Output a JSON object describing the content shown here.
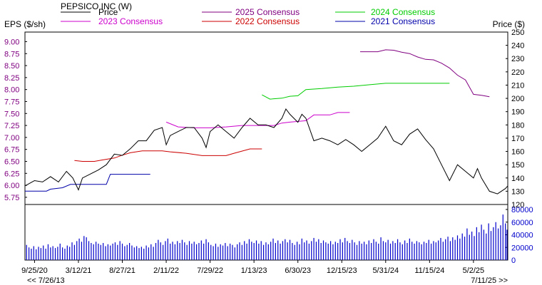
{
  "chart_data": {
    "type": "line",
    "title": "PEPSICO INC (W)",
    "eps_axis_label": "EPS ($/sh)",
    "price_axis_label": "Price ($)",
    "eps_ylim": [
      5.6,
      9.2
    ],
    "eps_ticks": [
      "9.00",
      "8.75",
      "8.50",
      "8.25",
      "8.00",
      "7.75",
      "7.50",
      "7.25",
      "7.00",
      "6.75",
      "6.50",
      "6.25",
      "6.00",
      "5.75"
    ],
    "price_ylim": [
      120,
      250
    ],
    "price_ticks": [
      "250",
      "240",
      "230",
      "220",
      "210",
      "200",
      "190",
      "180",
      "170",
      "160",
      "150",
      "140",
      "130",
      "120"
    ],
    "volume_ylim": [
      0,
      80000
    ],
    "volume_ticks": [
      "80000",
      "60000",
      "40000",
      "20000",
      "0"
    ],
    "x_ticks": [
      {
        "t": 0.0,
        "label": "9/25/20"
      },
      {
        "t": 5.5,
        "label": "3/12/21"
      },
      {
        "t": 11.0,
        "label": "8/27/21"
      },
      {
        "t": 16.5,
        "label": "2/11/22"
      },
      {
        "t": 22.0,
        "label": "7/29/22"
      },
      {
        "t": 27.5,
        "label": "1/13/23"
      },
      {
        "t": 33.0,
        "label": "6/30/23"
      },
      {
        "t": 38.5,
        "label": "12/15/23"
      },
      {
        "t": 44.0,
        "label": "5/31/24"
      },
      {
        "t": 49.5,
        "label": "11/15/24"
      },
      {
        "t": 55.0,
        "label": "5/2/25"
      }
    ],
    "t_range": [
      -1.2,
      59.3
    ],
    "t_unit": "months since 9/25/20",
    "range_start_label": "<< 7/26/13",
    "range_end_label": "7/11/25 >>",
    "legend": [
      {
        "name": "Price",
        "color": "#000000"
      },
      {
        "name": "2023 Consensus",
        "color": "#cc00cc"
      },
      {
        "name": "2025 Consensus",
        "color": "#800080"
      },
      {
        "name": "2022 Consensus",
        "color": "#cc0000"
      },
      {
        "name": "2024 Consensus",
        "color": "#00cc00"
      },
      {
        "name": "2021 Consensus",
        "color": "#0000aa"
      }
    ],
    "price_series": {
      "name": "Price",
      "color": "#000000",
      "points": [
        [
          -1.2,
          134
        ],
        [
          0,
          138
        ],
        [
          1,
          137
        ],
        [
          2,
          141
        ],
        [
          3,
          137
        ],
        [
          4,
          145
        ],
        [
          4.8,
          140
        ],
        [
          5.5,
          131
        ],
        [
          6,
          140
        ],
        [
          7,
          143
        ],
        [
          8,
          146
        ],
        [
          9,
          150
        ],
        [
          10,
          158
        ],
        [
          11,
          157
        ],
        [
          12,
          162
        ],
        [
          13,
          168
        ],
        [
          14,
          168
        ],
        [
          15,
          176
        ],
        [
          16,
          178
        ],
        [
          16.5,
          165
        ],
        [
          17,
          172
        ],
        [
          18,
          175
        ],
        [
          19,
          178
        ],
        [
          20,
          178
        ],
        [
          21,
          170
        ],
        [
          21.5,
          163
        ],
        [
          22,
          175
        ],
        [
          23,
          180
        ],
        [
          24,
          175
        ],
        [
          25,
          170
        ],
        [
          26,
          178
        ],
        [
          27,
          185
        ],
        [
          28,
          180
        ],
        [
          29,
          180
        ],
        [
          30,
          178
        ],
        [
          31,
          185
        ],
        [
          31.5,
          192
        ],
        [
          32,
          188
        ],
        [
          33,
          182
        ],
        [
          33.5,
          188
        ],
        [
          34,
          185
        ],
        [
          35,
          168
        ],
        [
          36,
          170
        ],
        [
          37,
          168
        ],
        [
          38,
          165
        ],
        [
          39,
          169
        ],
        [
          40,
          165
        ],
        [
          41,
          160
        ],
        [
          42,
          165
        ],
        [
          43,
          170
        ],
        [
          44,
          179
        ],
        [
          45,
          168
        ],
        [
          46,
          165
        ],
        [
          47,
          173
        ],
        [
          48,
          177
        ],
        [
          49,
          169
        ],
        [
          50,
          162
        ],
        [
          51,
          150
        ],
        [
          52,
          138
        ],
        [
          53,
          150
        ],
        [
          54,
          145
        ],
        [
          55,
          140
        ],
        [
          55.5,
          147
        ],
        [
          56,
          140
        ],
        [
          57,
          130
        ],
        [
          58,
          128
        ],
        [
          59,
          132
        ],
        [
          59.3,
          134
        ]
      ]
    },
    "consensus_series": [
      {
        "name": "2021 Consensus",
        "color": "#0000aa",
        "points": [
          [
            -1.2,
            5.88
          ],
          [
            1.5,
            5.88
          ],
          [
            2,
            5.92
          ],
          [
            3.5,
            5.95
          ],
          [
            4.5,
            6.02
          ],
          [
            9,
            6.02
          ],
          [
            9.5,
            6.23
          ],
          [
            14.5,
            6.23
          ]
        ]
      },
      {
        "name": "2022 Consensus",
        "color": "#cc0000",
        "points": [
          [
            5,
            6.52
          ],
          [
            6,
            6.5
          ],
          [
            7.5,
            6.5
          ],
          [
            8.5,
            6.53
          ],
          [
            10,
            6.57
          ],
          [
            11,
            6.63
          ],
          [
            12,
            6.68
          ],
          [
            13.5,
            6.72
          ],
          [
            16,
            6.72
          ],
          [
            17,
            6.7
          ],
          [
            19,
            6.67
          ],
          [
            21,
            6.62
          ],
          [
            24,
            6.62
          ],
          [
            25,
            6.67
          ],
          [
            27,
            6.76
          ],
          [
            28.5,
            6.76
          ]
        ]
      },
      {
        "name": "2023 Consensus",
        "color": "#cc00cc",
        "points": [
          [
            16.5,
            7.32
          ],
          [
            18,
            7.22
          ],
          [
            20,
            7.2
          ],
          [
            22,
            7.2
          ],
          [
            24,
            7.22
          ],
          [
            26,
            7.25
          ],
          [
            28,
            7.25
          ],
          [
            30,
            7.25
          ],
          [
            31,
            7.3
          ],
          [
            32,
            7.32
          ],
          [
            34,
            7.35
          ],
          [
            35,
            7.47
          ],
          [
            37,
            7.47
          ],
          [
            38,
            7.52
          ],
          [
            39.5,
            7.52
          ]
        ]
      },
      {
        "name": "2024 Consensus",
        "color": "#00cc00",
        "points": [
          [
            28.5,
            7.89
          ],
          [
            29.5,
            7.8
          ],
          [
            31,
            7.82
          ],
          [
            32,
            7.86
          ],
          [
            33,
            7.87
          ],
          [
            34,
            8.0
          ],
          [
            36,
            8.02
          ],
          [
            38,
            8.05
          ],
          [
            40,
            8.07
          ],
          [
            42,
            8.1
          ],
          [
            44,
            8.13
          ],
          [
            46,
            8.13
          ],
          [
            48,
            8.13
          ],
          [
            50,
            8.13
          ],
          [
            52,
            8.13
          ]
        ]
      },
      {
        "name": "2025 Consensus",
        "color": "#800080",
        "points": [
          [
            40.8,
            8.79
          ],
          [
            43,
            8.79
          ],
          [
            44,
            8.83
          ],
          [
            45,
            8.82
          ],
          [
            46,
            8.78
          ],
          [
            47,
            8.75
          ],
          [
            48,
            8.68
          ],
          [
            49,
            8.63
          ],
          [
            50,
            8.62
          ],
          [
            51,
            8.55
          ],
          [
            52,
            8.45
          ],
          [
            53,
            8.3
          ],
          [
            54,
            8.2
          ],
          [
            55,
            7.9
          ],
          [
            56,
            7.88
          ],
          [
            57,
            7.85
          ]
        ]
      }
    ],
    "volume_bars": [
      [
        -1.0,
        24000
      ],
      [
        -0.7,
        20000
      ],
      [
        -0.4,
        18000
      ],
      [
        -0.1,
        22000
      ],
      [
        0.2,
        17000
      ],
      [
        0.5,
        21000
      ],
      [
        0.8,
        19000
      ],
      [
        1.1,
        23000
      ],
      [
        1.4,
        18000
      ],
      [
        1.7,
        25000
      ],
      [
        2.0,
        20000
      ],
      [
        2.3,
        22000
      ],
      [
        2.6,
        19000
      ],
      [
        2.9,
        21000
      ],
      [
        3.2,
        26000
      ],
      [
        3.5,
        20000
      ],
      [
        3.8,
        18000
      ],
      [
        4.1,
        23000
      ],
      [
        4.4,
        21000
      ],
      [
        4.7,
        28000
      ],
      [
        5.0,
        24000
      ],
      [
        5.3,
        30000
      ],
      [
        5.6,
        34000
      ],
      [
        5.9,
        29000
      ],
      [
        6.2,
        38000
      ],
      [
        6.5,
        36000
      ],
      [
        6.8,
        30000
      ],
      [
        7.1,
        27000
      ],
      [
        7.4,
        25000
      ],
      [
        7.7,
        29000
      ],
      [
        8.0,
        26000
      ],
      [
        8.3,
        24000
      ],
      [
        8.6,
        27000
      ],
      [
        8.9,
        22000
      ],
      [
        9.2,
        25000
      ],
      [
        9.5,
        23000
      ],
      [
        9.8,
        26000
      ],
      [
        10.1,
        28000
      ],
      [
        10.4,
        24000
      ],
      [
        10.7,
        30000
      ],
      [
        11.0,
        26000
      ],
      [
        11.3,
        22000
      ],
      [
        11.6,
        24000
      ],
      [
        11.9,
        27000
      ],
      [
        12.2,
        23000
      ],
      [
        12.5,
        20000
      ],
      [
        12.8,
        22000
      ],
      [
        13.1,
        19000
      ],
      [
        13.4,
        21000
      ],
      [
        13.7,
        18000
      ],
      [
        14.0,
        23000
      ],
      [
        14.3,
        20000
      ],
      [
        14.6,
        25000
      ],
      [
        14.9,
        21000
      ],
      [
        15.2,
        27000
      ],
      [
        15.5,
        32000
      ],
      [
        15.8,
        28000
      ],
      [
        16.1,
        24000
      ],
      [
        16.4,
        30000
      ],
      [
        16.7,
        34000
      ],
      [
        17.0,
        26000
      ],
      [
        17.3,
        29000
      ],
      [
        17.6,
        25000
      ],
      [
        17.9,
        30000
      ],
      [
        18.2,
        27000
      ],
      [
        18.5,
        32000
      ],
      [
        18.8,
        28000
      ],
      [
        19.1,
        24000
      ],
      [
        19.4,
        30000
      ],
      [
        19.7,
        26000
      ],
      [
        20.0,
        29000
      ],
      [
        20.3,
        25000
      ],
      [
        20.6,
        27000
      ],
      [
        20.9,
        31000
      ],
      [
        21.2,
        26000
      ],
      [
        21.5,
        33000
      ],
      [
        21.8,
        28000
      ],
      [
        22.1,
        24000
      ],
      [
        22.4,
        22000
      ],
      [
        22.7,
        26000
      ],
      [
        23.0,
        21000
      ],
      [
        23.3,
        25000
      ],
      [
        23.6,
        23000
      ],
      [
        23.9,
        27000
      ],
      [
        24.2,
        22000
      ],
      [
        24.5,
        26000
      ],
      [
        24.8,
        24000
      ],
      [
        25.1,
        20000
      ],
      [
        25.4,
        25000
      ],
      [
        25.7,
        28000
      ],
      [
        26.0,
        24000
      ],
      [
        26.3,
        30000
      ],
      [
        26.6,
        26000
      ],
      [
        26.9,
        33000
      ],
      [
        27.2,
        29000
      ],
      [
        27.5,
        27000
      ],
      [
        27.8,
        31000
      ],
      [
        28.1,
        26000
      ],
      [
        28.4,
        30000
      ],
      [
        28.7,
        24000
      ],
      [
        29.0,
        28000
      ],
      [
        29.3,
        25000
      ],
      [
        29.6,
        29000
      ],
      [
        29.9,
        34000
      ],
      [
        30.2,
        27000
      ],
      [
        30.5,
        31000
      ],
      [
        30.8,
        26000
      ],
      [
        31.1,
        30000
      ],
      [
        31.4,
        33000
      ],
      [
        31.7,
        28000
      ],
      [
        32.0,
        32000
      ],
      [
        32.3,
        27000
      ],
      [
        32.6,
        24000
      ],
      [
        32.9,
        29000
      ],
      [
        33.2,
        25000
      ],
      [
        33.5,
        34000
      ],
      [
        33.8,
        28000
      ],
      [
        34.1,
        31000
      ],
      [
        34.4,
        26000
      ],
      [
        34.7,
        30000
      ],
      [
        35.0,
        35000
      ],
      [
        35.3,
        29000
      ],
      [
        35.6,
        33000
      ],
      [
        35.9,
        27000
      ],
      [
        36.2,
        31000
      ],
      [
        36.5,
        28000
      ],
      [
        36.8,
        26000
      ],
      [
        37.1,
        30000
      ],
      [
        37.4,
        25000
      ],
      [
        37.7,
        29000
      ],
      [
        38.0,
        27000
      ],
      [
        38.3,
        33000
      ],
      [
        38.6,
        28000
      ],
      [
        38.9,
        35000
      ],
      [
        39.2,
        30000
      ],
      [
        39.5,
        27000
      ],
      [
        39.8,
        32000
      ],
      [
        40.1,
        28000
      ],
      [
        40.4,
        24000
      ],
      [
        40.7,
        30000
      ],
      [
        41.0,
        26000
      ],
      [
        41.3,
        29000
      ],
      [
        41.6,
        25000
      ],
      [
        41.9,
        31000
      ],
      [
        42.2,
        27000
      ],
      [
        42.5,
        33000
      ],
      [
        42.8,
        29000
      ],
      [
        43.1,
        26000
      ],
      [
        43.4,
        36000
      ],
      [
        43.7,
        30000
      ],
      [
        44.0,
        28000
      ],
      [
        44.3,
        32000
      ],
      [
        44.6,
        26000
      ],
      [
        44.9,
        30000
      ],
      [
        45.2,
        27000
      ],
      [
        45.5,
        33000
      ],
      [
        45.8,
        28000
      ],
      [
        46.1,
        25000
      ],
      [
        46.4,
        31000
      ],
      [
        46.7,
        27000
      ],
      [
        47.0,
        34000
      ],
      [
        47.3,
        29000
      ],
      [
        47.6,
        26000
      ],
      [
        47.9,
        30000
      ],
      [
        48.2,
        28000
      ],
      [
        48.5,
        25000
      ],
      [
        48.8,
        29000
      ],
      [
        49.1,
        27000
      ],
      [
        49.4,
        32000
      ],
      [
        49.7,
        26000
      ],
      [
        50.0,
        30000
      ],
      [
        50.3,
        28000
      ],
      [
        50.6,
        31000
      ],
      [
        50.9,
        35000
      ],
      [
        51.2,
        29000
      ],
      [
        51.5,
        33000
      ],
      [
        51.8,
        37000
      ],
      [
        52.1,
        30000
      ],
      [
        52.4,
        36000
      ],
      [
        52.7,
        32000
      ],
      [
        53.0,
        39000
      ],
      [
        53.3,
        34000
      ],
      [
        53.6,
        42000
      ],
      [
        53.9,
        37000
      ],
      [
        54.2,
        50000
      ],
      [
        54.5,
        40000
      ],
      [
        54.8,
        45000
      ],
      [
        55.1,
        38000
      ],
      [
        55.4,
        52000
      ],
      [
        55.7,
        44000
      ],
      [
        56.0,
        56000
      ],
      [
        56.3,
        48000
      ],
      [
        56.6,
        42000
      ],
      [
        56.9,
        58000
      ],
      [
        57.2,
        46000
      ],
      [
        57.5,
        52000
      ],
      [
        57.8,
        60000
      ],
      [
        58.1,
        50000
      ],
      [
        58.4,
        55000
      ],
      [
        58.7,
        72000
      ],
      [
        59.0,
        58000
      ],
      [
        59.2,
        48000
      ]
    ]
  }
}
